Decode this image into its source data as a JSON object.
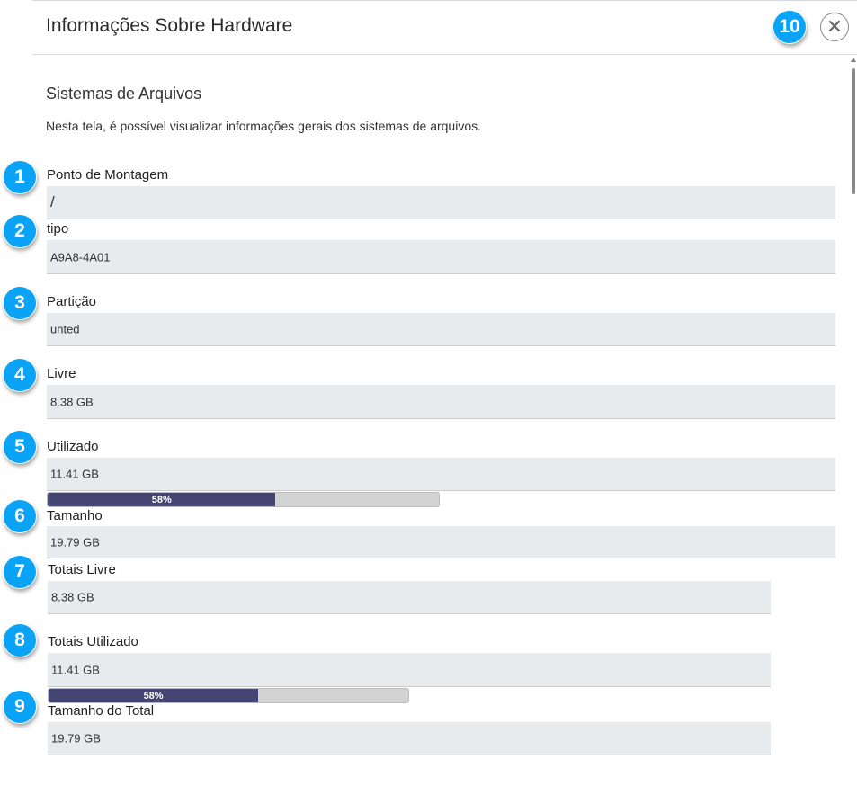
{
  "header": {
    "title": "Informações Sobre Hardware",
    "close_badge": "10",
    "close_icon": "close-circle-icon"
  },
  "section": {
    "title": "Sistemas de Arquivos",
    "description": "Nesta tela, é possível visualizar informações gerais dos sistemas de arquivos."
  },
  "fields": [
    {
      "badge": "1",
      "label": "Ponto de Montagem",
      "value": "/"
    },
    {
      "badge": "2",
      "label": "tipo",
      "value": "A9A8-4A01"
    },
    {
      "badge": "3",
      "label": "Partição",
      "value": "unted"
    },
    {
      "badge": "4",
      "label": "Livre",
      "value": "8.38 GB"
    },
    {
      "badge": "5",
      "label": "Utilizado",
      "value": "11.41 GB",
      "progress": {
        "percent": 58,
        "label": "58%"
      }
    },
    {
      "badge": "6",
      "label": "Tamanho",
      "value": "19.79 GB"
    },
    {
      "badge": "7",
      "label": "Totais Livre",
      "value": "8.38 GB"
    },
    {
      "badge": "8",
      "label": "Totais Utilizado",
      "value": "11.41 GB",
      "progress": {
        "percent": 58,
        "label": "58%"
      }
    },
    {
      "badge": "9",
      "label": "Tamanho do Total",
      "value": "19.79 GB"
    }
  ],
  "colors": {
    "badge": "#0aa3f5",
    "progress_fill": "#454574",
    "field_bg": "#e8ebee"
  }
}
